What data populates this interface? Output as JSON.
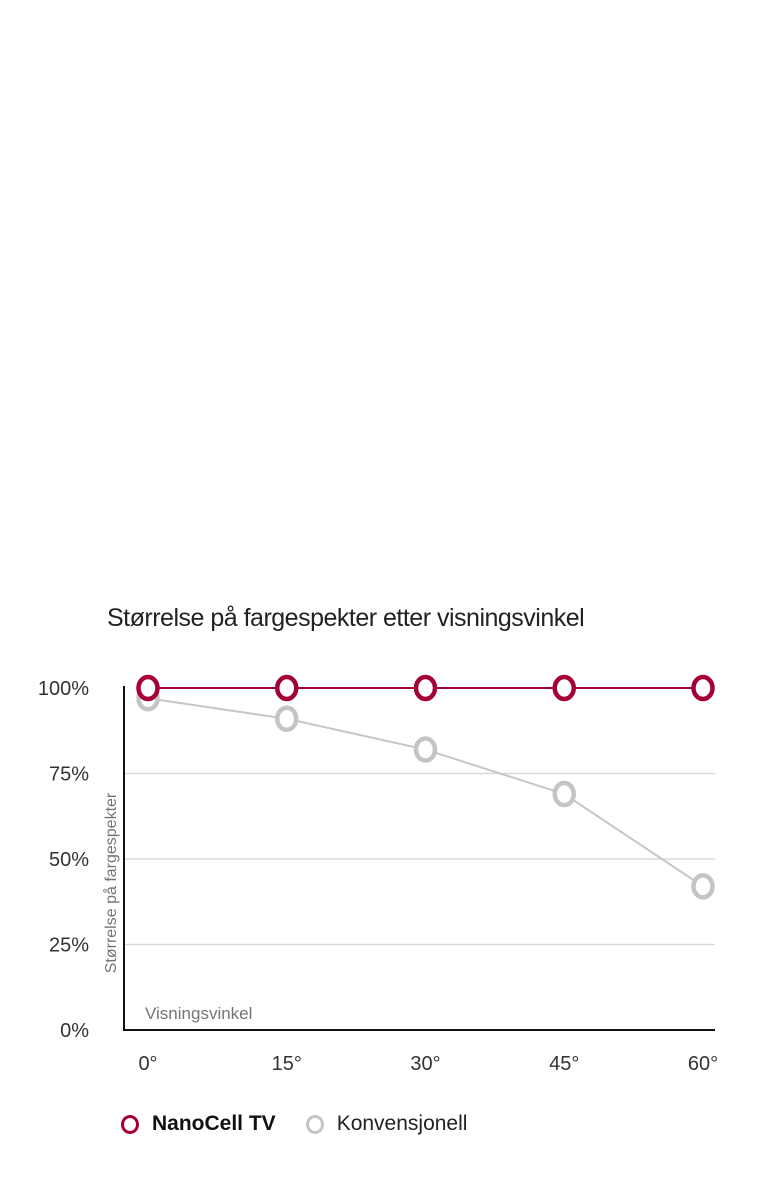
{
  "chart_data": {
    "type": "line",
    "title": "Størrelse på fargespekter etter visningsvinkel",
    "xlabel": "Visningsvinkel",
    "ylabel": "Størrelse på fargespekter",
    "categories": [
      "0°",
      "15°",
      "30°",
      "45°",
      "60°"
    ],
    "series": [
      {
        "name": "NanoCell TV",
        "values": [
          100,
          100,
          100,
          100,
          100
        ],
        "color": "#a50034",
        "line_color": "#a50034",
        "bold_legend": true
      },
      {
        "name": "Konvensjonell",
        "values": [
          97,
          91,
          82,
          69,
          42
        ],
        "color": "#c4c4c4",
        "line_color": "#c6c6c6",
        "bold_legend": false
      }
    ],
    "y_ticks": [
      {
        "label": "100%",
        "value": 100
      },
      {
        "label": "75%",
        "value": 75
      },
      {
        "label": "50%",
        "value": 50
      },
      {
        "label": "25%",
        "value": 25
      },
      {
        "label": "0%",
        "value": 0
      }
    ],
    "ylim": [
      0,
      100
    ],
    "gridlines_at": [
      75,
      50,
      25
    ],
    "grid_on": true,
    "legend_position": "bottom-left",
    "colors": {
      "axis": "#111111",
      "grid": "#dadada",
      "tick_text": "#333333",
      "axis_label_text": "#757575",
      "title_text": "#222222",
      "marker_fill": "#ffffff"
    }
  }
}
